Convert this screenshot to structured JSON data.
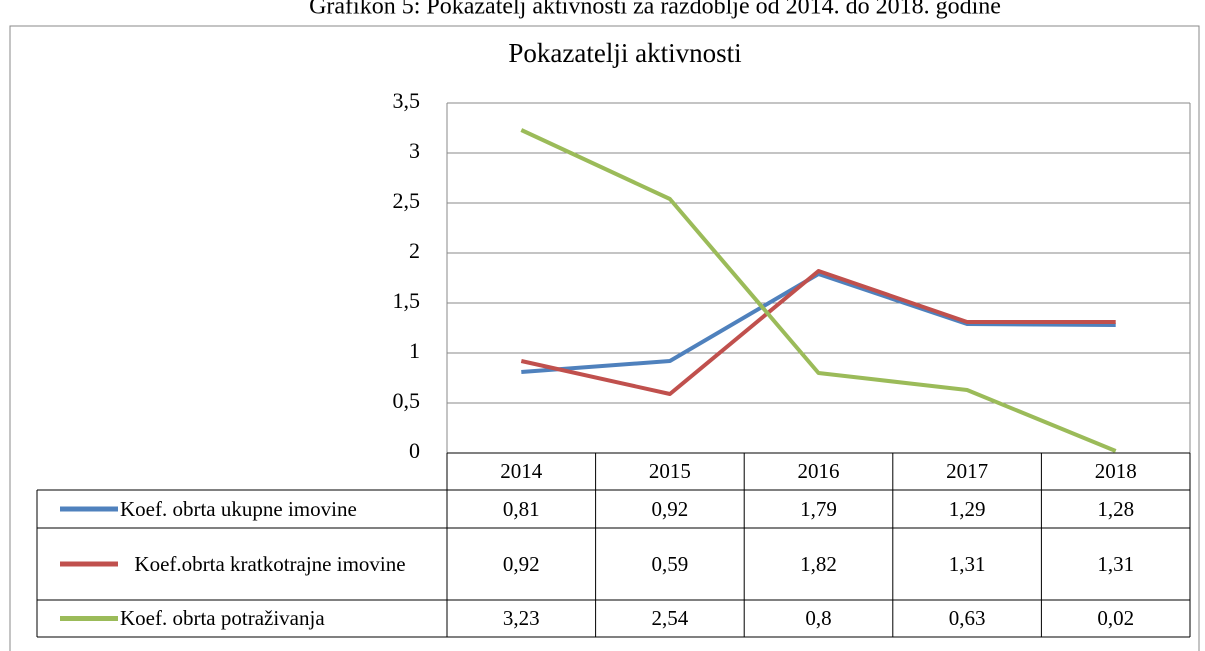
{
  "chart_data": {
    "type": "line",
    "caption": "Grafikon 5: Pokazatelj aktivnosti za razdoblje od 2014. do 2018. godine",
    "title": "Pokazatelji aktivnosti",
    "categories": [
      "2014",
      "2015",
      "2016",
      "2017",
      "2018"
    ],
    "series": [
      {
        "name": "Koef. obrta ukupne imovine",
        "color": "#4f81bd",
        "values": [
          0.81,
          0.92,
          1.79,
          1.29,
          1.28
        ],
        "value_labels": [
          "0,81",
          "0,92",
          "1,79",
          "1,29",
          "1,28"
        ]
      },
      {
        "name": "Koef.obrta kratkotrajne imovine",
        "color": "#c0504d",
        "values": [
          0.92,
          0.59,
          1.82,
          1.31,
          1.31
        ],
        "value_labels": [
          "0,92",
          "0,59",
          "1,82",
          "1,31",
          "1,31"
        ]
      },
      {
        "name": "Koef. obrta potraživanja",
        "color": "#9bbb59",
        "values": [
          3.23,
          2.54,
          0.8,
          0.63,
          0.02
        ],
        "value_labels": [
          "3,23",
          "2,54",
          "0,8",
          "0,63",
          "0,02"
        ]
      }
    ],
    "ylim": [
      0,
      3.5
    ],
    "yticks": [
      0,
      {
        "value": 0.5,
        "label": "0,5"
      },
      1,
      {
        "value": 1.5,
        "label": "1,5"
      },
      2,
      {
        "value": 2.5,
        "label": "2,5"
      },
      3,
      {
        "value": 3.5,
        "label": "3,5"
      }
    ],
    "grid": true,
    "data_table": true
  }
}
